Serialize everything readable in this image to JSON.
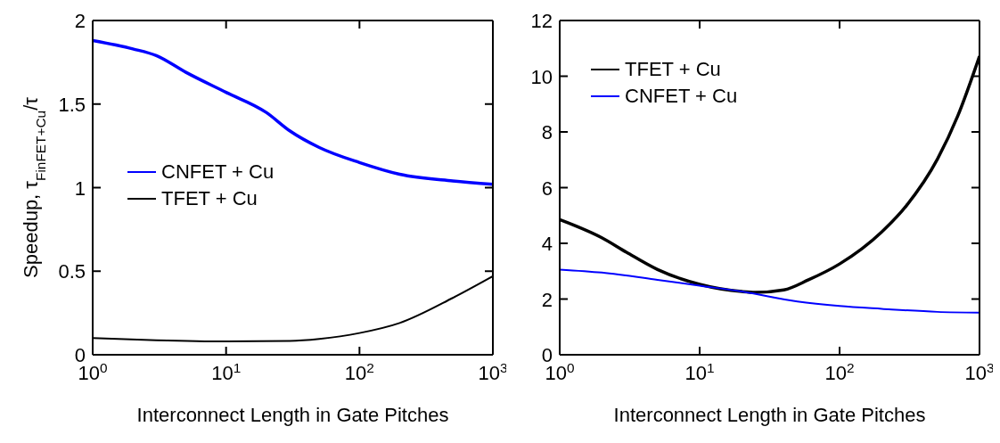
{
  "chart_data": [
    {
      "type": "line",
      "ylabel": "Speedup, τ$_{FinFET+Cu}$/τ",
      "xlabel": "Interconnect Length in Gate Pitches",
      "log": "x",
      "xlim": [
        1,
        1000
      ],
      "xticks": [
        {
          "value": 1,
          "label": "10$^{0}$"
        },
        {
          "value": 10,
          "label": "10$^{1}$"
        },
        {
          "value": 100,
          "label": "10$^{2}$"
        },
        {
          "value": 1000,
          "label": "10$^{3}$"
        }
      ],
      "ylim": [
        0,
        2
      ],
      "yticks": [
        0,
        0.5,
        1,
        1.5,
        2
      ],
      "legend": "left",
      "marker": "none",
      "line_style": "solid",
      "series": [
        {
          "name": "CNFET + Cu",
          "color": "#0000ff",
          "x": [
            1,
            2,
            3,
            5,
            10,
            20,
            30,
            50,
            100,
            200,
            500,
            1000
          ],
          "values": [
            1.88,
            1.83,
            1.79,
            1.69,
            1.57,
            1.45,
            1.34,
            1.24,
            1.15,
            1.08,
            1.04,
            1.02
          ]
        },
        {
          "name": "TFET + Cu",
          "color": "#000000",
          "x": [
            1,
            3,
            10,
            30,
            50,
            100,
            200,
            500,
            1000
          ],
          "values": [
            0.1,
            0.087,
            0.08,
            0.083,
            0.095,
            0.13,
            0.19,
            0.34,
            0.47
          ]
        }
      ]
    },
    {
      "type": "line",
      "xlabel": "Interconnect Length in Gate Pitches",
      "log": "x",
      "xlim": [
        1,
        1000
      ],
      "xticks": [
        {
          "value": 1,
          "label": "10$^{0}$"
        },
        {
          "value": 10,
          "label": "10$^{1}$"
        },
        {
          "value": 100,
          "label": "10$^{2}$"
        },
        {
          "value": 1000,
          "label": "10$^{3}$"
        }
      ],
      "ylim": [
        0,
        12
      ],
      "yticks": [
        0,
        2,
        4,
        6,
        8,
        10,
        12
      ],
      "legend": "top left",
      "marker": "none",
      "line_style": "solid",
      "series": [
        {
          "name": "TFET + Cu",
          "color": "#000000",
          "x": [
            1,
            2,
            3,
            5,
            10,
            20,
            25,
            40,
            60,
            100,
            200,
            300,
            500,
            700,
            1000
          ],
          "values": [
            4.85,
            4.2,
            3.68,
            3.06,
            2.53,
            2.27,
            2.24,
            2.33,
            2.69,
            3.26,
            4.41,
            5.35,
            7.02,
            8.58,
            10.72
          ]
        },
        {
          "name": "CNFET + Cu",
          "color": "#0000ff",
          "x": [
            1,
            2,
            5,
            10,
            20,
            50,
            100,
            200,
            500,
            1000
          ],
          "values": [
            3.06,
            2.95,
            2.69,
            2.48,
            2.27,
            1.91,
            1.75,
            1.65,
            1.54,
            1.51
          ]
        }
      ]
    }
  ]
}
